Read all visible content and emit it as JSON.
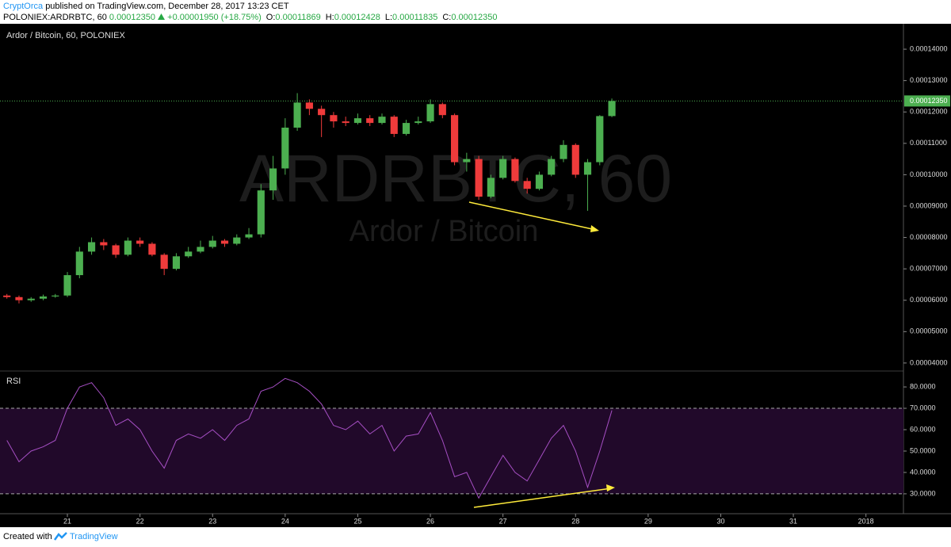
{
  "header": {
    "author": "CryptOrca",
    "published": "published on TradingView.com, December 28, 2017 13:23 CET",
    "symbol": "POLONIEX:ARDRBTC, 60",
    "last": "0.00012350",
    "change": "+0.00001950 (+18.75%)",
    "ohlc": [
      {
        "label": "O:",
        "value": "0.00011869"
      },
      {
        "label": "H:",
        "value": "0.00012428"
      },
      {
        "label": "L:",
        "value": "0.00011835"
      },
      {
        "label": "C:",
        "value": "0.00012350"
      }
    ]
  },
  "footer": {
    "created": "Created with",
    "brand": "TradingView"
  },
  "chart_data": [
    {
      "type": "candlestick",
      "title": "Ardor / Bitcoin, 60, POLONIEX",
      "watermark": "ARDRBTC, 60",
      "watermark_sub": "Ardor / Bitcoin",
      "up_color": "#4caf50",
      "down_color": "#ef3b3b",
      "open": [
        6.15e-05,
        6.1e-05,
        6e-05,
        6.05e-05,
        6.12e-05,
        6.15e-05,
        6.8e-05,
        7.55e-05,
        7.85e-05,
        7.75e-05,
        7.45e-05,
        7.9e-05,
        7.8e-05,
        7.45e-05,
        7e-05,
        7.4e-05,
        7.55e-05,
        7.7e-05,
        7.9e-05,
        7.8e-05,
        8e-05,
        8.1e-05,
        9.5e-05,
        0.000102,
        0.000115,
        0.000123,
        0.000121,
        0.000119,
        0.000117,
        0.0001165,
        0.000118,
        0.0001165,
        0.0001185,
        0.000113,
        0.0001165,
        0.000117,
        0.0001225,
        0.000119,
        0.000104,
        0.000105,
        9.3e-05,
        9.9e-05,
        0.000105,
        9.8e-05,
        9.55e-05,
        0.0001,
        0.000105,
        0.0001095,
        0.0001,
        0.000104,
        0.00011869
      ],
      "high": [
        6.2e-05,
        6.15e-05,
        6.1e-05,
        6.18e-05,
        6.2e-05,
        6.9e-05,
        7.7e-05,
        8e-05,
        7.95e-05,
        7.8e-05,
        8e-05,
        8e-05,
        7.85e-05,
        7.5e-05,
        7.5e-05,
        7.7e-05,
        7.9e-05,
        8.05e-05,
        7.95e-05,
        8.1e-05,
        8.3e-05,
        9.7e-05,
        0.000106,
        0.000118,
        0.000126,
        0.000124,
        0.000122,
        0.00012,
        0.0001185,
        0.0001195,
        0.000119,
        0.0001195,
        0.000119,
        0.0001175,
        0.0001185,
        0.000124,
        0.000123,
        0.0001195,
        0.000107,
        0.000106,
        0.0001,
        0.000106,
        0.0001055,
        9.9e-05,
        0.000101,
        0.000106,
        0.000111,
        0.00011,
        0.000105,
        0.000119,
        0.00012428
      ],
      "low": [
        6.05e-05,
        5.9e-05,
        5.95e-05,
        6e-05,
        6.08e-05,
        6.1e-05,
        6.7e-05,
        7.45e-05,
        7.6e-05,
        7.35e-05,
        7.4e-05,
        7.7e-05,
        7.4e-05,
        6.8e-05,
        6.95e-05,
        7.35e-05,
        7.5e-05,
        7.65e-05,
        7.7e-05,
        7.75e-05,
        7.95e-05,
        8e-05,
        9.2e-05,
        0.0001,
        0.000114,
        0.000119,
        0.000112,
        0.000115,
        0.0001155,
        0.000116,
        0.0001155,
        0.000116,
        0.000112,
        0.0001125,
        0.000116,
        0.0001165,
        0.000118,
        0.000103,
        0.000101,
        9.2e-05,
        9.25e-05,
        9.85e-05,
        9.75e-05,
        9.4e-05,
        9.5e-05,
        9.95e-05,
        0.000104,
        9.9e-05,
        8.85e-05,
        0.000103,
        0.00011835
      ],
      "close": [
        6.1e-05,
        6e-05,
        6.05e-05,
        6.12e-05,
        6.15e-05,
        6.8e-05,
        7.55e-05,
        7.85e-05,
        7.75e-05,
        7.45e-05,
        7.9e-05,
        7.8e-05,
        7.45e-05,
        7e-05,
        7.4e-05,
        7.55e-05,
        7.7e-05,
        7.9e-05,
        7.8e-05,
        8e-05,
        8.1e-05,
        9.5e-05,
        0.000102,
        0.000115,
        0.000123,
        0.000121,
        0.000119,
        0.000117,
        0.0001165,
        0.000118,
        0.0001165,
        0.0001185,
        0.000113,
        0.0001165,
        0.000117,
        0.0001225,
        0.000119,
        0.000104,
        0.000105,
        9.3e-05,
        9.9e-05,
        0.000105,
        9.8e-05,
        9.55e-05,
        0.0001,
        0.000105,
        0.0001095,
        0.0001,
        0.000104,
        0.00011869,
        0.0001235
      ],
      "last_price": 0.0001235,
      "last_price_label": "0.00012350",
      "last_price_color": "#4caf50",
      "xlim": [
        -0.57,
        74.1
      ],
      "xticks": [
        {
          "value": 5,
          "label": "21"
        },
        {
          "value": 11,
          "label": "22"
        },
        {
          "value": 17,
          "label": "23"
        },
        {
          "value": 23,
          "label": "24"
        },
        {
          "value": 29,
          "label": "25"
        },
        {
          "value": 35,
          "label": "26"
        },
        {
          "value": 41,
          "label": "27"
        },
        {
          "value": 47,
          "label": "28"
        },
        {
          "value": 53,
          "label": "29"
        },
        {
          "value": 59,
          "label": "30"
        },
        {
          "value": 65,
          "label": "31"
        },
        {
          "value": 71,
          "label": "2018"
        }
      ],
      "ylim": [
        3.77e-05,
        0.0001481
      ],
      "yticks": [
        {
          "value": 4e-05,
          "label": "0.00004000"
        },
        {
          "value": 5e-05,
          "label": "0.00005000"
        },
        {
          "value": 6e-05,
          "label": "0.00006000"
        },
        {
          "value": 7e-05,
          "label": "0.00007000"
        },
        {
          "value": 8e-05,
          "label": "0.00008000"
        },
        {
          "value": 9e-05,
          "label": "0.00009000"
        },
        {
          "value": 0.0001,
          "label": "0.00010000"
        },
        {
          "value": 0.00011,
          "label": "0.00011000"
        },
        {
          "value": 0.00012,
          "label": "0.00012000"
        },
        {
          "value": 0.00013,
          "label": "0.00013000"
        },
        {
          "value": 0.00014,
          "label": "0.00014000"
        }
      ],
      "grid": false
    },
    {
      "type": "line",
      "title": "RSI",
      "color": "#a64fc4",
      "band_color": "#21092a",
      "values": [
        55,
        45,
        50,
        52,
        55,
        70,
        80,
        82,
        75,
        62,
        65,
        60,
        50,
        42,
        55,
        58,
        56,
        60,
        55,
        62,
        65,
        78,
        80,
        84,
        82,
        78,
        72,
        62,
        60,
        64,
        58,
        62,
        50,
        57,
        58,
        68,
        55,
        38,
        40,
        28,
        38,
        48,
        40,
        36,
        46,
        56,
        62,
        50,
        33,
        50,
        69
      ],
      "levels": [
        30,
        70
      ],
      "ylim": [
        20.7,
        86.7
      ],
      "yticks": [
        {
          "value": 30,
          "label": "30.0000"
        },
        {
          "value": 40,
          "label": "40.0000"
        },
        {
          "value": 50,
          "label": "50.0000"
        },
        {
          "value": 60,
          "label": "60.0000"
        },
        {
          "value": 70,
          "label": "70.0000"
        },
        {
          "value": 80,
          "label": "80.0000"
        }
      ],
      "grid": false
    }
  ]
}
